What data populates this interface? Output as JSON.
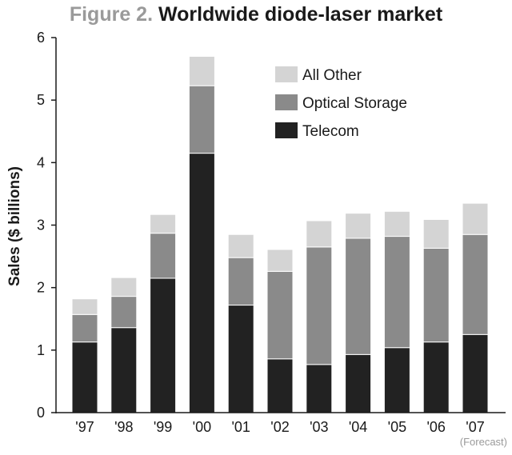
{
  "figure": {
    "number": "Figure 2.",
    "title": "Worldwide diode-laser market"
  },
  "colors": {
    "telecom": "#222222",
    "optical_storage": "#8a8a8a",
    "all_other": "#d4d4d4",
    "axis": "#1a1a1a",
    "figure_number": "#9a9a9a"
  },
  "chart_data": {
    "type": "bar",
    "stacked": true,
    "title": "Worldwide diode-laser market",
    "xlabel": "",
    "ylabel": "Sales ($ billions)",
    "ylim": [
      0,
      6
    ],
    "yticks": [
      0,
      1,
      2,
      3,
      4,
      5,
      6
    ],
    "grid": false,
    "legend_position": "top-right",
    "categories": [
      "'97",
      "'98",
      "'99",
      "'00",
      "'01",
      "'02",
      "'03",
      "'04",
      "'05",
      "'06",
      "'07"
    ],
    "series": [
      {
        "name": "Telecom",
        "values": [
          1.13,
          1.36,
          2.15,
          4.15,
          1.72,
          0.86,
          0.77,
          0.93,
          1.04,
          1.13,
          1.25
        ]
      },
      {
        "name": "Optical Storage",
        "values": [
          0.44,
          0.5,
          0.72,
          1.08,
          0.76,
          1.4,
          1.88,
          1.86,
          1.78,
          1.5,
          1.6
        ]
      },
      {
        "name": "All Other",
        "values": [
          0.25,
          0.3,
          0.3,
          0.47,
          0.37,
          0.35,
          0.42,
          0.4,
          0.4,
          0.46,
          0.5
        ]
      }
    ],
    "annotation": "(Forecast)"
  }
}
